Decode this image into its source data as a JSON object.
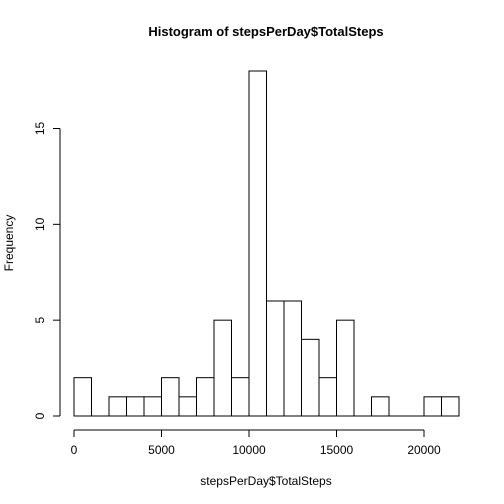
{
  "chart_data": {
    "type": "bar",
    "title": "Histogram of stepsPerDay$TotalSteps",
    "xlabel": "stepsPerDay$TotalSteps",
    "ylabel": "Frequency",
    "bin_width": 1000,
    "bins": [
      {
        "start": 0,
        "end": 1000,
        "count": 2
      },
      {
        "start": 1000,
        "end": 2000,
        "count": 0
      },
      {
        "start": 2000,
        "end": 3000,
        "count": 1
      },
      {
        "start": 3000,
        "end": 4000,
        "count": 1
      },
      {
        "start": 4000,
        "end": 5000,
        "count": 1
      },
      {
        "start": 5000,
        "end": 6000,
        "count": 2
      },
      {
        "start": 6000,
        "end": 7000,
        "count": 1
      },
      {
        "start": 7000,
        "end": 8000,
        "count": 2
      },
      {
        "start": 8000,
        "end": 9000,
        "count": 5
      },
      {
        "start": 9000,
        "end": 10000,
        "count": 2
      },
      {
        "start": 10000,
        "end": 11000,
        "count": 18
      },
      {
        "start": 11000,
        "end": 12000,
        "count": 6
      },
      {
        "start": 12000,
        "end": 13000,
        "count": 6
      },
      {
        "start": 13000,
        "end": 14000,
        "count": 4
      },
      {
        "start": 14000,
        "end": 15000,
        "count": 2
      },
      {
        "start": 15000,
        "end": 16000,
        "count": 5
      },
      {
        "start": 16000,
        "end": 17000,
        "count": 0
      },
      {
        "start": 17000,
        "end": 18000,
        "count": 1
      },
      {
        "start": 18000,
        "end": 19000,
        "count": 0
      },
      {
        "start": 19000,
        "end": 20000,
        "count": 0
      },
      {
        "start": 20000,
        "end": 21000,
        "count": 1
      },
      {
        "start": 21000,
        "end": 22000,
        "count": 1
      }
    ],
    "x_ticks": [
      0,
      5000,
      10000,
      15000,
      20000
    ],
    "x_tick_labels": [
      "0",
      "5000",
      "10000",
      "15000",
      "20000"
    ],
    "y_ticks": [
      0,
      5,
      10,
      15
    ],
    "y_tick_labels": [
      "0",
      "5",
      "10",
      "15"
    ],
    "xlim": [
      0,
      22000
    ],
    "ylim": [
      0,
      18
    ],
    "grid": false,
    "bar_fill": "#ffffff",
    "bar_stroke": "#000000"
  }
}
